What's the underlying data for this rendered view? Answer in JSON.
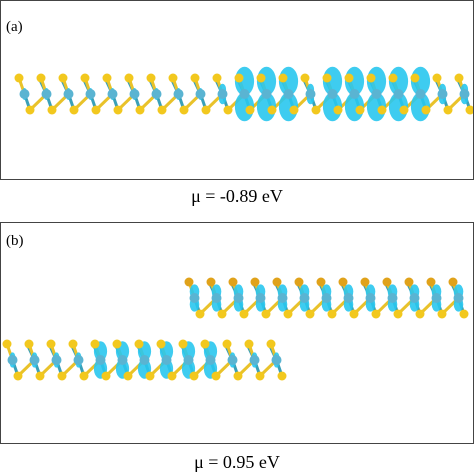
{
  "panels": [
    {
      "label": "(a)",
      "caption": "μ = -0.89 eV"
    },
    {
      "label": "(b)",
      "caption": "μ = 0.95 eV"
    }
  ],
  "colors": {
    "sulfur": "#f2c81e",
    "sulfur_dark": "#e0a21a",
    "metal": "#5ab4d2",
    "density": "#29c7ee",
    "bond_yellow": "#e9c22a",
    "bond_teal": "#3aa0b8"
  }
}
